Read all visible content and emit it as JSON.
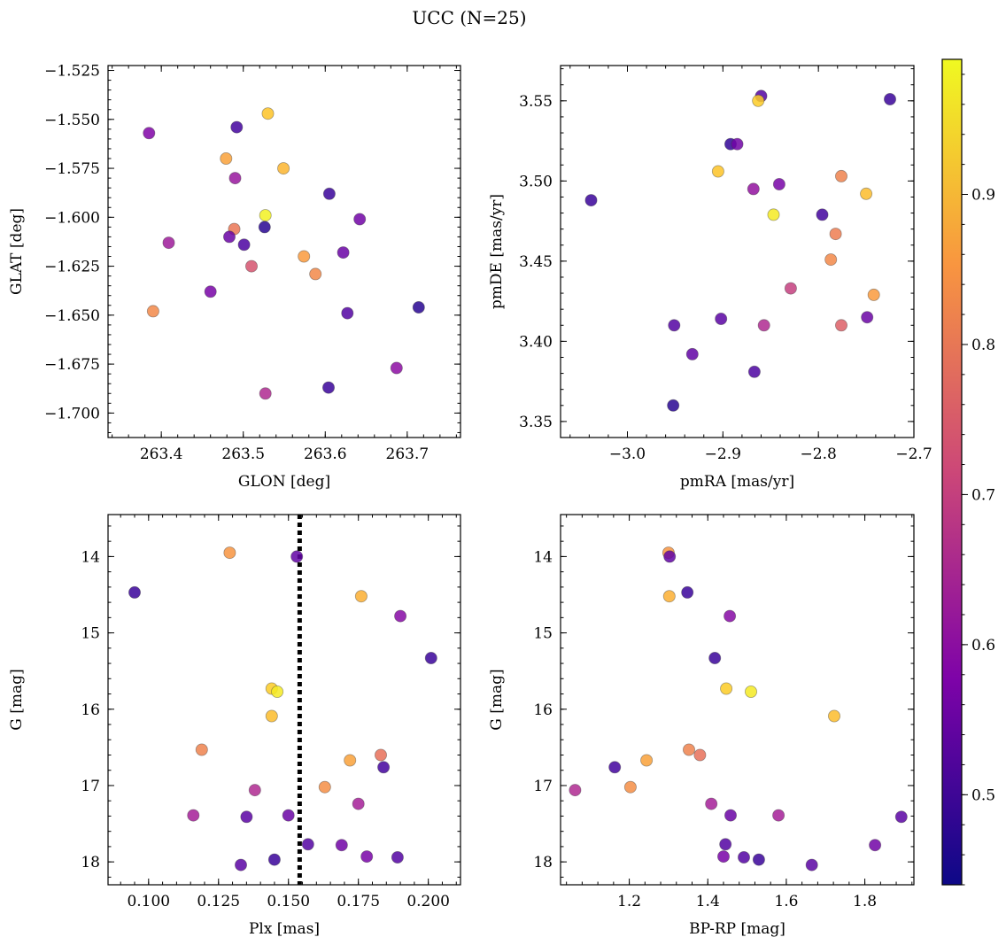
{
  "figure": {
    "title": "UCC (N=25)"
  },
  "colorbar": {
    "colormap": "plasma",
    "range": [
      0.44,
      0.99
    ],
    "ticks": [
      0.5,
      0.6,
      0.7,
      0.8,
      0.9
    ],
    "tick_labels": [
      "0.5",
      "0.6",
      "0.7",
      "0.8",
      "0.9"
    ]
  },
  "chart_data": [
    {
      "type": "scatter",
      "xlabel": "GLON [deg]",
      "ylabel": "GLAT [deg]",
      "xlim": [
        263.335,
        263.765
      ],
      "ylim": [
        -1.7125,
        -1.5225
      ],
      "invert_y": false,
      "x_ticks": [
        263.4,
        263.5,
        263.6,
        263.7
      ],
      "x_tick_labels": [
        "263.4",
        "263.5",
        "263.6",
        "263.7"
      ],
      "y_ticks": [
        -1.525,
        -1.55,
        -1.575,
        -1.6,
        -1.625,
        -1.65,
        -1.675,
        -1.7
      ],
      "y_tick_labels": [
        "−1.525",
        "−1.550",
        "−1.575",
        "−1.600",
        "−1.625",
        "−1.650",
        "−1.675",
        "−1.700"
      ],
      "points": [
        {
          "x": 263.385,
          "y": -1.557,
          "c": 0.58
        },
        {
          "x": 263.492,
          "y": -1.554,
          "c": 0.5
        },
        {
          "x": 263.53,
          "y": -1.547,
          "c": 0.92
        },
        {
          "x": 263.479,
          "y": -1.57,
          "c": 0.87
        },
        {
          "x": 263.49,
          "y": -1.58,
          "c": 0.62
        },
        {
          "x": 263.549,
          "y": -1.575,
          "c": 0.9
        },
        {
          "x": 263.605,
          "y": -1.588,
          "c": 0.49
        },
        {
          "x": 263.527,
          "y": -1.599,
          "c": 0.98
        },
        {
          "x": 263.642,
          "y": -1.601,
          "c": 0.56
        },
        {
          "x": 263.489,
          "y": -1.606,
          "c": 0.8
        },
        {
          "x": 263.526,
          "y": -1.605,
          "c": 0.47
        },
        {
          "x": 263.483,
          "y": -1.61,
          "c": 0.55
        },
        {
          "x": 263.409,
          "y": -1.613,
          "c": 0.63
        },
        {
          "x": 263.501,
          "y": -1.614,
          "c": 0.51
        },
        {
          "x": 263.622,
          "y": -1.618,
          "c": 0.55
        },
        {
          "x": 263.574,
          "y": -1.62,
          "c": 0.86
        },
        {
          "x": 263.51,
          "y": -1.625,
          "c": 0.74
        },
        {
          "x": 263.588,
          "y": -1.629,
          "c": 0.83
        },
        {
          "x": 263.46,
          "y": -1.638,
          "c": 0.57
        },
        {
          "x": 263.39,
          "y": -1.648,
          "c": 0.83
        },
        {
          "x": 263.714,
          "y": -1.646,
          "c": 0.47
        },
        {
          "x": 263.627,
          "y": -1.649,
          "c": 0.52
        },
        {
          "x": 263.687,
          "y": -1.677,
          "c": 0.6
        },
        {
          "x": 263.604,
          "y": -1.687,
          "c": 0.49
        },
        {
          "x": 263.527,
          "y": -1.69,
          "c": 0.66
        }
      ]
    },
    {
      "type": "scatter",
      "xlabel": "pmRA [mas/yr]",
      "ylabel": "pmDE [mas/yr]",
      "xlim": [
        -3.07,
        -2.7
      ],
      "ylim": [
        3.34,
        3.572
      ],
      "invert_y": false,
      "x_ticks": [
        -3.0,
        -2.9,
        -2.8,
        -2.7
      ],
      "x_tick_labels": [
        "−3.0",
        "−2.9",
        "−2.8",
        "−2.7"
      ],
      "y_ticks": [
        3.35,
        3.4,
        3.45,
        3.5,
        3.55
      ],
      "y_tick_labels": [
        "3.35",
        "3.40",
        "3.45",
        "3.50",
        "3.55"
      ],
      "points": [
        {
          "x": -2.86,
          "y": 3.553,
          "c": 0.52
        },
        {
          "x": -2.863,
          "y": 3.55,
          "c": 0.93
        },
        {
          "x": -2.725,
          "y": 3.551,
          "c": 0.49
        },
        {
          "x": -2.892,
          "y": 3.523,
          "c": 0.48
        },
        {
          "x": -2.885,
          "y": 3.523,
          "c": 0.56
        },
        {
          "x": -2.905,
          "y": 3.506,
          "c": 0.92
        },
        {
          "x": -2.868,
          "y": 3.495,
          "c": 0.61
        },
        {
          "x": -2.841,
          "y": 3.498,
          "c": 0.57
        },
        {
          "x": -2.776,
          "y": 3.503,
          "c": 0.82
        },
        {
          "x": -2.75,
          "y": 3.492,
          "c": 0.91
        },
        {
          "x": -3.038,
          "y": 3.488,
          "c": 0.49
        },
        {
          "x": -2.847,
          "y": 3.479,
          "c": 0.97
        },
        {
          "x": -2.796,
          "y": 3.479,
          "c": 0.5
        },
        {
          "x": -2.782,
          "y": 3.467,
          "c": 0.81
        },
        {
          "x": -2.787,
          "y": 3.451,
          "c": 0.83
        },
        {
          "x": -2.829,
          "y": 3.433,
          "c": 0.7
        },
        {
          "x": -2.742,
          "y": 3.429,
          "c": 0.86
        },
        {
          "x": -2.902,
          "y": 3.414,
          "c": 0.53
        },
        {
          "x": -2.749,
          "y": 3.415,
          "c": 0.55
        },
        {
          "x": -2.951,
          "y": 3.41,
          "c": 0.52
        },
        {
          "x": -2.857,
          "y": 3.41,
          "c": 0.66
        },
        {
          "x": -2.776,
          "y": 3.41,
          "c": 0.76
        },
        {
          "x": -2.932,
          "y": 3.392,
          "c": 0.54
        },
        {
          "x": -2.867,
          "y": 3.381,
          "c": 0.51
        },
        {
          "x": -2.952,
          "y": 3.36,
          "c": 0.47
        }
      ]
    },
    {
      "type": "scatter",
      "xlabel": "Plx [mas]",
      "ylabel": "G [mag]",
      "xlim": [
        0.0855,
        0.2115
      ],
      "ylim": [
        13.45,
        18.3
      ],
      "invert_y": true,
      "x_ticks": [
        0.1,
        0.125,
        0.15,
        0.175,
        0.2
      ],
      "x_tick_labels": [
        "0.100",
        "0.125",
        "0.150",
        "0.175",
        "0.200"
      ],
      "y_ticks": [
        14,
        15,
        16,
        17,
        18
      ],
      "y_tick_labels": [
        "14",
        "15",
        "16",
        "17",
        "18"
      ],
      "vline": {
        "x": 0.154,
        "style": "dotted",
        "color": "#000000"
      },
      "points": [
        {
          "x": 0.129,
          "y": 13.95,
          "c": 0.85
        },
        {
          "x": 0.153,
          "y": 14.0,
          "c": 0.54
        },
        {
          "x": 0.095,
          "y": 14.47,
          "c": 0.49
        },
        {
          "x": 0.176,
          "y": 14.52,
          "c": 0.89
        },
        {
          "x": 0.19,
          "y": 14.78,
          "c": 0.59
        },
        {
          "x": 0.201,
          "y": 15.33,
          "c": 0.49
        },
        {
          "x": 0.144,
          "y": 15.73,
          "c": 0.93
        },
        {
          "x": 0.146,
          "y": 15.77,
          "c": 0.97
        },
        {
          "x": 0.144,
          "y": 16.09,
          "c": 0.91
        },
        {
          "x": 0.119,
          "y": 16.53,
          "c": 0.82
        },
        {
          "x": 0.183,
          "y": 16.6,
          "c": 0.79
        },
        {
          "x": 0.172,
          "y": 16.67,
          "c": 0.87
        },
        {
          "x": 0.184,
          "y": 16.76,
          "c": 0.5
        },
        {
          "x": 0.163,
          "y": 17.02,
          "c": 0.84
        },
        {
          "x": 0.138,
          "y": 17.06,
          "c": 0.66
        },
        {
          "x": 0.175,
          "y": 17.24,
          "c": 0.64
        },
        {
          "x": 0.116,
          "y": 17.39,
          "c": 0.64
        },
        {
          "x": 0.135,
          "y": 17.41,
          "c": 0.53
        },
        {
          "x": 0.15,
          "y": 17.39,
          "c": 0.55
        },
        {
          "x": 0.157,
          "y": 17.77,
          "c": 0.52
        },
        {
          "x": 0.169,
          "y": 17.78,
          "c": 0.56
        },
        {
          "x": 0.178,
          "y": 17.93,
          "c": 0.57
        },
        {
          "x": 0.189,
          "y": 17.94,
          "c": 0.52
        },
        {
          "x": 0.145,
          "y": 17.97,
          "c": 0.49
        },
        {
          "x": 0.133,
          "y": 18.04,
          "c": 0.53
        }
      ]
    },
    {
      "type": "scatter",
      "xlabel": "BP-RP [mag]",
      "ylabel": "G [mag]",
      "xlim": [
        1.025,
        1.925
      ],
      "ylim": [
        13.45,
        18.3
      ],
      "invert_y": true,
      "x_ticks": [
        1.2,
        1.4,
        1.6,
        1.8
      ],
      "x_tick_labels": [
        "1.2",
        "1.4",
        "1.6",
        "1.8"
      ],
      "y_ticks": [
        14,
        15,
        16,
        17,
        18
      ],
      "y_tick_labels": [
        "14",
        "15",
        "16",
        "17",
        "18"
      ],
      "points": [
        {
          "x": 1.3,
          "y": 13.95,
          "c": 0.85
        },
        {
          "x": 1.303,
          "y": 14.0,
          "c": 0.54
        },
        {
          "x": 1.348,
          "y": 14.47,
          "c": 0.49
        },
        {
          "x": 1.302,
          "y": 14.52,
          "c": 0.89
        },
        {
          "x": 1.456,
          "y": 14.78,
          "c": 0.59
        },
        {
          "x": 1.418,
          "y": 15.33,
          "c": 0.49
        },
        {
          "x": 1.447,
          "y": 15.73,
          "c": 0.93
        },
        {
          "x": 1.51,
          "y": 15.77,
          "c": 0.97
        },
        {
          "x": 1.722,
          "y": 16.09,
          "c": 0.91
        },
        {
          "x": 1.352,
          "y": 16.53,
          "c": 0.82
        },
        {
          "x": 1.38,
          "y": 16.6,
          "c": 0.79
        },
        {
          "x": 1.244,
          "y": 16.67,
          "c": 0.87
        },
        {
          "x": 1.163,
          "y": 16.76,
          "c": 0.5
        },
        {
          "x": 1.203,
          "y": 17.02,
          "c": 0.84
        },
        {
          "x": 1.062,
          "y": 17.06,
          "c": 0.66
        },
        {
          "x": 1.409,
          "y": 17.24,
          "c": 0.64
        },
        {
          "x": 1.58,
          "y": 17.39,
          "c": 0.64
        },
        {
          "x": 1.893,
          "y": 17.41,
          "c": 0.53
        },
        {
          "x": 1.458,
          "y": 17.39,
          "c": 0.55
        },
        {
          "x": 1.445,
          "y": 17.77,
          "c": 0.52
        },
        {
          "x": 1.826,
          "y": 17.78,
          "c": 0.56
        },
        {
          "x": 1.44,
          "y": 17.93,
          "c": 0.57
        },
        {
          "x": 1.492,
          "y": 17.94,
          "c": 0.52
        },
        {
          "x": 1.53,
          "y": 17.97,
          "c": 0.49
        },
        {
          "x": 1.665,
          "y": 18.04,
          "c": 0.53
        }
      ]
    }
  ]
}
